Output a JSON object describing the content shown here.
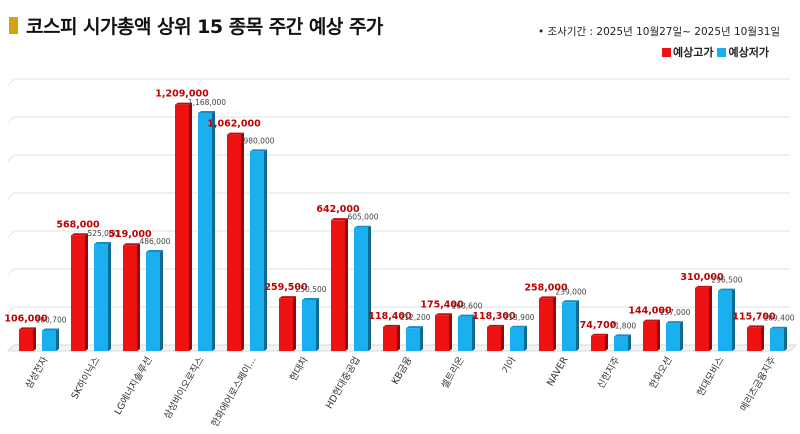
{
  "title": "코스피 시가총액 상위 15 종목 주간 예상 주가",
  "survey_period": "조사기간 : 2025년 10월27일~ 2025년 10월31일",
  "colors": {
    "high": "#ee1111",
    "low": "#1ab0f0",
    "title_mark": "#d4a017",
    "high_label": "#c00000",
    "low_label": "#444444"
  },
  "chart_data": {
    "type": "bar",
    "categories": [
      "삼성전자",
      "SK하이닉스",
      "LG에너지솔루션",
      "삼성바이오로직스",
      "한화에어로스페이...",
      "현대차",
      "HD현대중공업",
      "KB금융",
      "셀트리온",
      "기아",
      "NAVER",
      "신한지주",
      "한화오션",
      "현대모비스",
      "메리츠금융지주"
    ],
    "series": [
      {
        "name": "예상고가",
        "values": [
          106000,
          568000,
          519000,
          1209000,
          1062000,
          259500,
          642000,
          118400,
          175400,
          118300,
          258000,
          74700,
          144000,
          310000,
          115700
        ],
        "labels": [
          "106,000",
          "568,000",
          "519,000",
          "1,209,000",
          "1,062,000",
          "259,500",
          "642,000",
          "118,400",
          "175,400",
          "118,300",
          "258,000",
          "74,700",
          "144,000",
          "310,000",
          "115,700"
        ]
      },
      {
        "name": "예상저가",
        "values": [
          100700,
          525000,
          486000,
          1168000,
          980000,
          250500,
          605000,
          112200,
          168600,
          113900,
          239000,
          71800,
          137000,
          296500,
          109400
        ],
        "labels": [
          "100,700",
          "525,000",
          "486,000",
          "1,168,000",
          "980,000",
          "250,500",
          "605,000",
          "112,200",
          "168,600",
          "113,900",
          "239,000",
          "71,800",
          "137,000",
          "296,500",
          "109,400"
        ]
      }
    ],
    "legend_position": "top-right",
    "grid": true
  }
}
